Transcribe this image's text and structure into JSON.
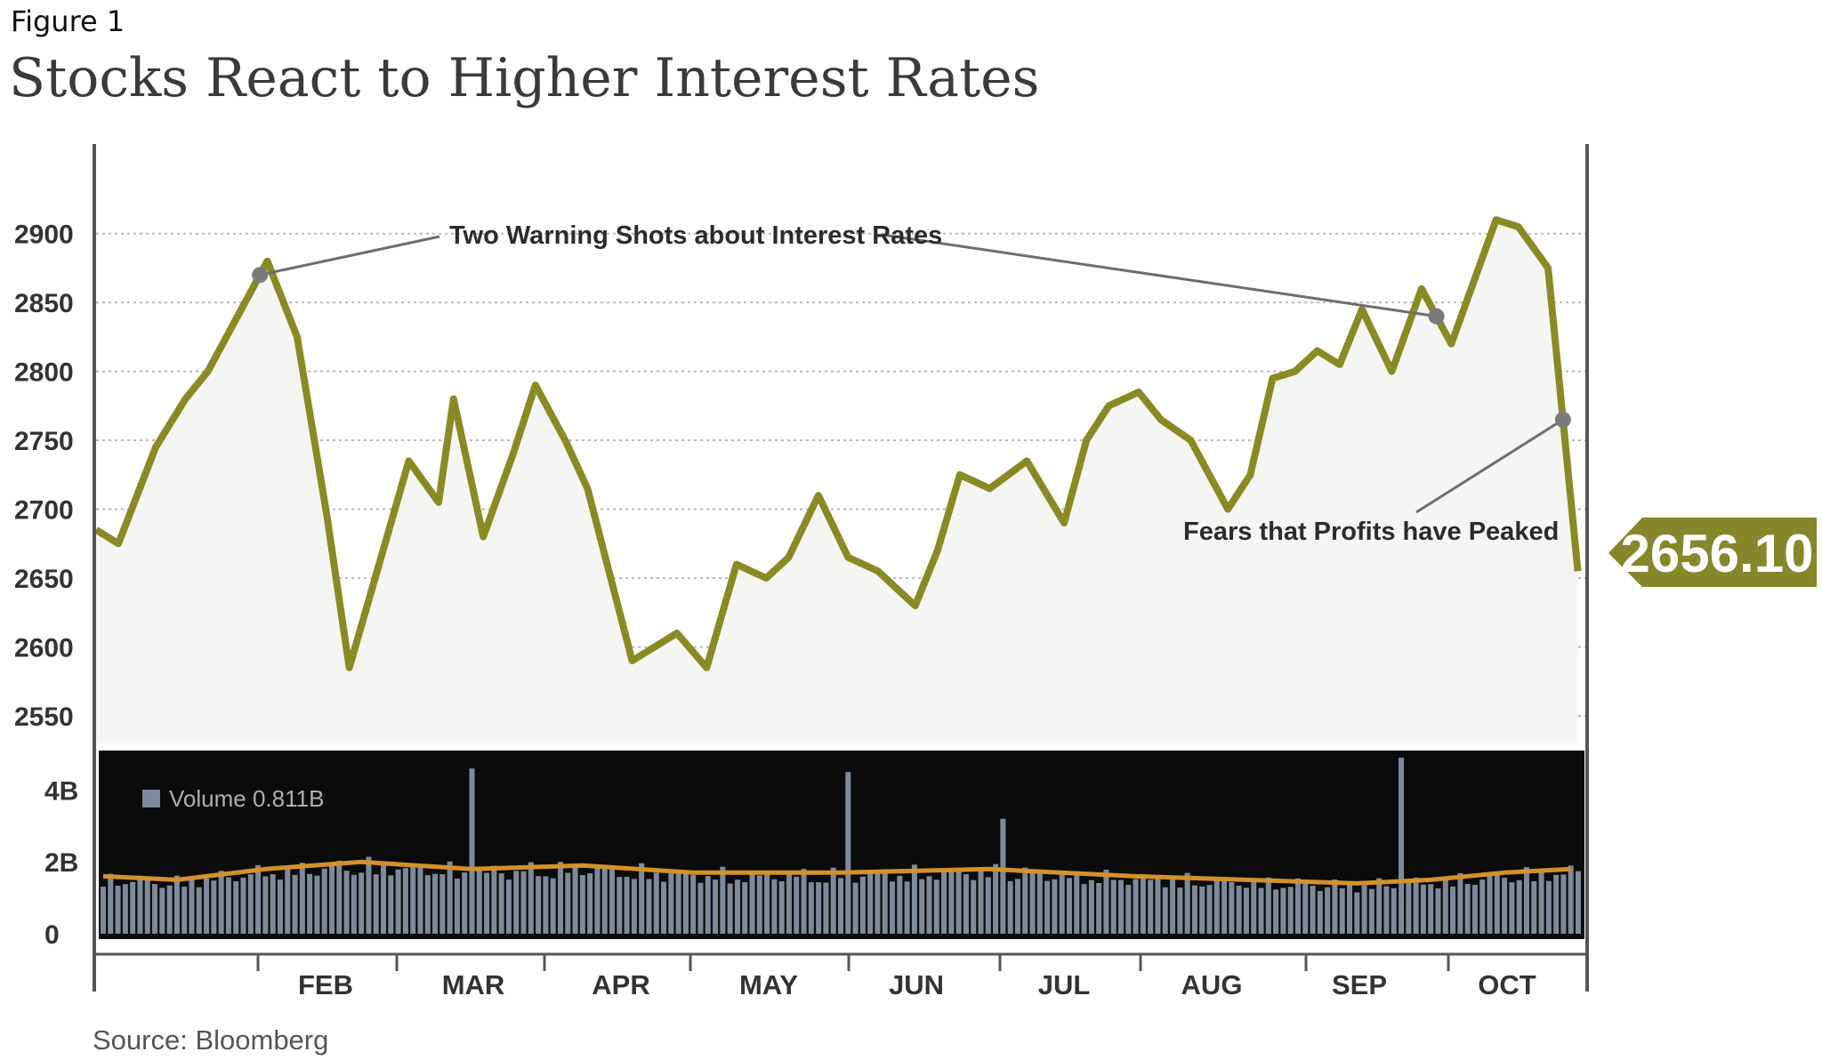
{
  "figure_label": "Figure 1",
  "source": "Source: Bloomberg",
  "colors": {
    "price_line": "#8a8a24",
    "price_fill": "#f5f5f4",
    "volume_bg": "#0b0b0b",
    "volume_bar": "#7d8a9c",
    "volume_avg": "#d4922a",
    "callout_bg": "#86862a"
  },
  "chart_data": [
    {
      "type": "line",
      "title": "Stocks React to Higher Interest Rates",
      "x_labels": [
        "FEB",
        "MAR",
        "APR",
        "MAY",
        "JUN",
        "JUL",
        "AUG",
        "SEP",
        "OCT"
      ],
      "yticks": [
        "2900",
        "2850",
        "2800",
        "2750",
        "2700",
        "2650",
        "2600",
        "2550"
      ],
      "ylim": [
        2530,
        2965
      ],
      "grid": true,
      "x_index_range": [
        0,
        200
      ],
      "x": [
        0,
        3,
        8,
        12,
        15,
        19,
        23,
        27,
        31,
        34,
        38,
        42,
        46,
        48,
        52,
        56,
        59,
        63,
        66,
        72,
        78,
        82,
        86,
        90,
        93,
        97,
        101,
        105,
        110,
        113,
        116,
        120,
        125,
        130,
        133,
        136,
        140,
        143,
        147,
        152,
        155,
        158,
        161,
        164,
        167,
        170,
        174,
        178,
        182,
        185,
        188,
        191,
        195,
        199
      ],
      "series": [
        {
          "values": [
            2685,
            2675,
            2745,
            2780,
            2800,
            2840,
            2880,
            2825,
            2695,
            2585,
            2660,
            2735,
            2705,
            2780,
            2680,
            2740,
            2790,
            2750,
            2715,
            2590,
            2610,
            2585,
            2660,
            2650,
            2665,
            2710,
            2665,
            2655,
            2630,
            2670,
            2725,
            2715,
            2735,
            2690,
            2750,
            2775,
            2785,
            2765,
            2750,
            2700,
            2725,
            2795,
            2800,
            2815,
            2805,
            2845,
            2800,
            2860,
            2820,
            2865,
            2910,
            2905,
            2875,
            2655
          ],
          "point_annotations": [
            {
              "text": "Two Warning Shots about Interest Rates",
              "at_x": [
                22,
                180
              ]
            },
            {
              "text": "Fears that Profits have Peaked",
              "at_x": [
                197
              ]
            }
          ],
          "last_value": "2656.10"
        }
      ]
    },
    {
      "type": "bar",
      "legend": "Volume 0.811B",
      "yticks": [
        "4B",
        "2B",
        "0"
      ],
      "ylim": [
        0,
        5
      ],
      "x_index_range": [
        0,
        200
      ],
      "spikes": [
        {
          "x": 50,
          "value": 4.6
        },
        {
          "x": 101,
          "value": 4.5
        },
        {
          "x": 122,
          "value": 3.2
        },
        {
          "x": 176,
          "value": 4.9
        }
      ],
      "average": {
        "x": [
          0,
          10,
          22,
          35,
          50,
          65,
          80,
          100,
          120,
          140,
          155,
          170,
          180,
          190,
          199
        ],
        "values": [
          1.6,
          1.5,
          1.8,
          2.0,
          1.8,
          1.9,
          1.7,
          1.7,
          1.8,
          1.6,
          1.5,
          1.4,
          1.5,
          1.7,
          1.8
        ]
      }
    }
  ]
}
